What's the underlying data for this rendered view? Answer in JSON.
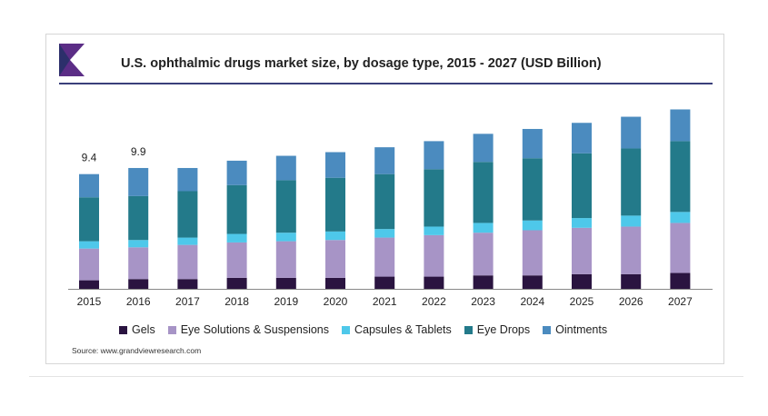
{
  "chart_data": {
    "type": "bar",
    "stacked": true,
    "title": "U.S. ophthalmic drugs market size, by dosage type, 2015 - 2027 (USD Billion)",
    "categories": [
      "2015",
      "2016",
      "2017",
      "2018",
      "2019",
      "2020",
      "2021",
      "2022",
      "2023",
      "2024",
      "2025",
      "2026",
      "2027"
    ],
    "series": [
      {
        "name": "Gels",
        "color": "#2a1440",
        "values": [
          0.7,
          0.8,
          0.8,
          0.9,
          0.9,
          0.9,
          1.0,
          1.0,
          1.1,
          1.1,
          1.2,
          1.2,
          1.3
        ]
      },
      {
        "name": "Eye Solutions & Suspensions",
        "color": "#a794c6",
        "values": [
          2.6,
          2.6,
          2.8,
          2.9,
          3.0,
          3.1,
          3.2,
          3.4,
          3.5,
          3.7,
          3.8,
          3.9,
          4.1
        ]
      },
      {
        "name": "Capsules & Tablets",
        "color": "#4ec8ea",
        "values": [
          0.6,
          0.6,
          0.6,
          0.7,
          0.7,
          0.7,
          0.7,
          0.7,
          0.8,
          0.8,
          0.8,
          0.9,
          0.9
        ]
      },
      {
        "name": "Eye Drops",
        "color": "#237a8a",
        "values": [
          3.6,
          3.6,
          3.8,
          4.0,
          4.3,
          4.4,
          4.5,
          4.7,
          5.0,
          5.1,
          5.3,
          5.5,
          5.8
        ]
      },
      {
        "name": "Ointments",
        "color": "#4b8bbf",
        "values": [
          1.9,
          2.3,
          1.9,
          2.0,
          2.0,
          2.1,
          2.2,
          2.3,
          2.3,
          2.4,
          2.5,
          2.6,
          2.6
        ]
      }
    ],
    "data_labels": [
      {
        "category": "2015",
        "text": "9.4"
      },
      {
        "category": "2016",
        "text": "9.9"
      }
    ],
    "ylim": [
      0,
      16
    ],
    "xlabel": "",
    "ylabel": "",
    "legend_position": "bottom"
  },
  "source": "Source: www.grandviewresearch.com",
  "brand": {
    "accent": "#3a3f7a",
    "logo_color_1": "#5b2d86",
    "logo_color_2": "#2c2f6b"
  }
}
